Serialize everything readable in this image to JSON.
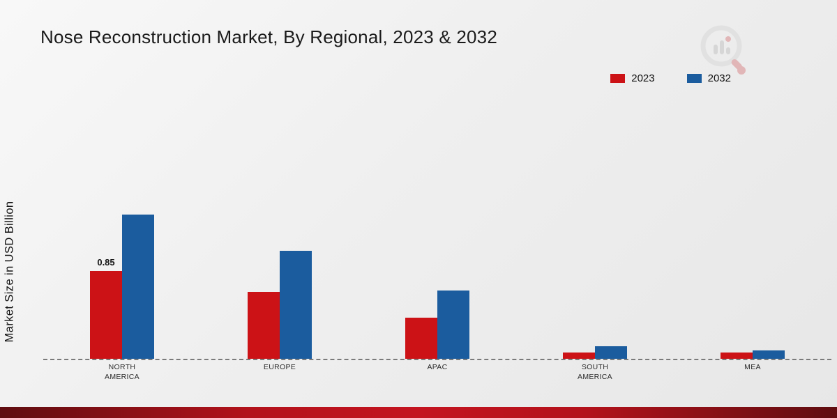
{
  "title": "Nose Reconstruction Market, By Regional, 2023 & 2032",
  "ylabel": "Market Size in USD Billion",
  "legend": {
    "items": [
      {
        "label": "2023",
        "color": "#cc1216"
      },
      {
        "label": "2032",
        "color": "#1b5c9e"
      }
    ]
  },
  "chart_data": {
    "type": "bar",
    "title": "Nose Reconstruction Market, By Regional, 2023 & 2032",
    "xlabel": "",
    "ylabel": "Market Size in USD Billion",
    "categories": [
      "NORTH AMERICA",
      "EUROPE",
      "APAC",
      "SOUTH AMERICA",
      "MEA"
    ],
    "series": [
      {
        "name": "2023",
        "color": "#cc1216",
        "values": [
          0.85,
          0.65,
          0.4,
          0.06,
          0.06
        ]
      },
      {
        "name": "2032",
        "color": "#1b5c9e",
        "values": [
          1.4,
          1.05,
          0.66,
          0.12,
          0.08
        ]
      }
    ],
    "value_labels": [
      {
        "series_index": 0,
        "category_index": 0,
        "text": "0.85"
      }
    ],
    "ylim": [
      0,
      2.4
    ],
    "grid": false,
    "baseline": "dashed",
    "legend_position": "top-right"
  }
}
